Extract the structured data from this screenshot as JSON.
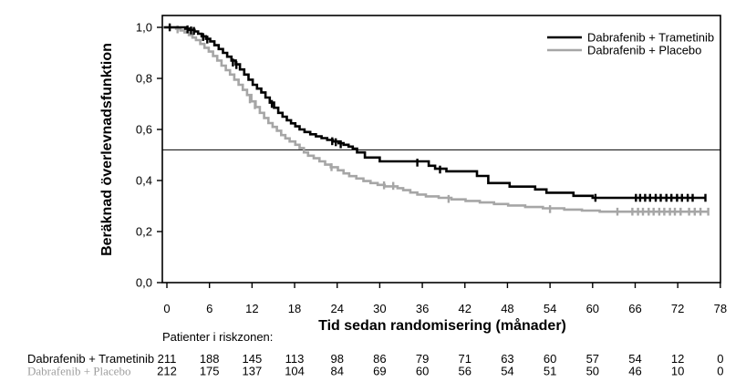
{
  "chart_data": {
    "type": "line",
    "variant": "kaplan_meier_step",
    "title": "",
    "xlabel": "Tid sedan randomisering (månader)",
    "ylabel": "Beräknad överlevnadsfunktion",
    "xlim": [
      0,
      78
    ],
    "ylim": [
      0.0,
      1.0
    ],
    "xticks": [
      0,
      6,
      12,
      18,
      24,
      30,
      36,
      42,
      48,
      54,
      60,
      66,
      72,
      78
    ],
    "yticks": [
      {
        "value": 0.0,
        "label": "0,0"
      },
      {
        "value": 0.2,
        "label": "0,2"
      },
      {
        "value": 0.4,
        "label": "0,4"
      },
      {
        "value": 0.6,
        "label": "0,6"
      },
      {
        "value": 0.8,
        "label": "0,8"
      },
      {
        "value": 1.0,
        "label": "1,0"
      }
    ],
    "grid": false,
    "legend_position": "top-right-inside",
    "reference_line": {
      "y": 0.52,
      "color": "#000000"
    },
    "axis_color": "#000000",
    "series": [
      {
        "name": "Dabrafenib + Trametinib",
        "color": "#000000",
        "steps": [
          [
            0,
            1.0
          ],
          [
            2.6,
            0.995
          ],
          [
            3.1,
            0.99
          ],
          [
            3.9,
            0.984
          ],
          [
            4.4,
            0.975
          ],
          [
            4.9,
            0.965
          ],
          [
            5.5,
            0.955
          ],
          [
            6.1,
            0.945
          ],
          [
            6.7,
            0.93
          ],
          [
            7.3,
            0.915
          ],
          [
            7.9,
            0.9
          ],
          [
            8.5,
            0.885
          ],
          [
            9.1,
            0.87
          ],
          [
            9.7,
            0.855
          ],
          [
            10.3,
            0.835
          ],
          [
            10.9,
            0.815
          ],
          [
            11.5,
            0.795
          ],
          [
            12.1,
            0.775
          ],
          [
            12.7,
            0.76
          ],
          [
            13.3,
            0.745
          ],
          [
            13.9,
            0.725
          ],
          [
            14.5,
            0.705
          ],
          [
            15.1,
            0.685
          ],
          [
            15.7,
            0.665
          ],
          [
            16.3,
            0.65
          ],
          [
            16.9,
            0.636
          ],
          [
            17.5,
            0.624
          ],
          [
            18.1,
            0.612
          ],
          [
            18.7,
            0.6
          ],
          [
            19.4,
            0.59
          ],
          [
            20.2,
            0.581
          ],
          [
            21.0,
            0.573
          ],
          [
            21.8,
            0.566
          ],
          [
            22.6,
            0.559
          ],
          [
            23.4,
            0.553
          ],
          [
            24.2,
            0.546
          ],
          [
            24.9,
            0.54
          ],
          [
            25.6,
            0.533
          ],
          [
            26.2,
            0.525
          ],
          [
            26.8,
            0.51
          ],
          [
            27.9,
            0.49
          ],
          [
            30.0,
            0.475
          ],
          [
            36.9,
            0.458
          ],
          [
            37.8,
            0.446
          ],
          [
            39.4,
            0.436
          ],
          [
            43.7,
            0.418
          ],
          [
            45.3,
            0.39
          ],
          [
            48.3,
            0.376
          ],
          [
            51.9,
            0.365
          ],
          [
            53.5,
            0.352
          ],
          [
            57.3,
            0.34
          ],
          [
            60.0,
            0.332
          ],
          [
            75.9,
            0.332
          ]
        ],
        "censor_marks": [
          [
            0.4,
            1.0
          ],
          [
            2.9,
            0.992
          ],
          [
            3.4,
            0.988
          ],
          [
            3.8,
            0.986
          ],
          [
            5.1,
            0.962
          ],
          [
            5.7,
            0.952
          ],
          [
            9.3,
            0.862
          ],
          [
            9.8,
            0.852
          ],
          [
            14.8,
            0.7
          ],
          [
            23.3,
            0.554
          ],
          [
            23.8,
            0.55
          ],
          [
            24.5,
            0.542
          ],
          [
            35.3,
            0.47
          ],
          [
            38.5,
            0.443
          ],
          [
            60.4,
            0.332
          ],
          [
            66.1,
            0.332
          ],
          [
            66.7,
            0.332
          ],
          [
            67.4,
            0.332
          ],
          [
            68.1,
            0.332
          ],
          [
            68.9,
            0.332
          ],
          [
            69.6,
            0.332
          ],
          [
            70.4,
            0.332
          ],
          [
            71.1,
            0.332
          ],
          [
            71.9,
            0.332
          ],
          [
            72.6,
            0.332
          ],
          [
            73.4,
            0.332
          ],
          [
            74.1,
            0.332
          ],
          [
            75.9,
            0.332
          ]
        ]
      },
      {
        "name": "Dabrafenib + Placebo",
        "color": "#a6a6a6",
        "steps": [
          [
            0,
            1.0
          ],
          [
            1.3,
            0.995
          ],
          [
            1.9,
            0.988
          ],
          [
            2.5,
            0.98
          ],
          [
            3.1,
            0.97
          ],
          [
            3.6,
            0.96
          ],
          [
            4.1,
            0.95
          ],
          [
            4.7,
            0.935
          ],
          [
            5.3,
            0.92
          ],
          [
            5.9,
            0.905
          ],
          [
            6.5,
            0.888
          ],
          [
            7.1,
            0.87
          ],
          [
            7.7,
            0.85
          ],
          [
            8.3,
            0.832
          ],
          [
            8.9,
            0.815
          ],
          [
            9.5,
            0.795
          ],
          [
            10.1,
            0.775
          ],
          [
            10.7,
            0.755
          ],
          [
            11.3,
            0.735
          ],
          [
            11.9,
            0.71
          ],
          [
            12.5,
            0.688
          ],
          [
            13.1,
            0.665
          ],
          [
            13.7,
            0.645
          ],
          [
            14.3,
            0.625
          ],
          [
            14.9,
            0.61
          ],
          [
            15.5,
            0.595
          ],
          [
            16.1,
            0.578
          ],
          [
            16.7,
            0.565
          ],
          [
            17.3,
            0.553
          ],
          [
            18.1,
            0.54
          ],
          [
            18.7,
            0.527
          ],
          [
            19.3,
            0.51
          ],
          [
            19.9,
            0.497
          ],
          [
            20.7,
            0.487
          ],
          [
            21.5,
            0.475
          ],
          [
            22.3,
            0.462
          ],
          [
            23.1,
            0.452
          ],
          [
            24.1,
            0.44
          ],
          [
            24.9,
            0.428
          ],
          [
            25.7,
            0.417
          ],
          [
            26.7,
            0.408
          ],
          [
            27.7,
            0.398
          ],
          [
            28.7,
            0.39
          ],
          [
            29.7,
            0.383
          ],
          [
            30.7,
            0.377
          ],
          [
            32.5,
            0.37
          ],
          [
            33.3,
            0.362
          ],
          [
            34.3,
            0.353
          ],
          [
            35.3,
            0.345
          ],
          [
            36.5,
            0.338
          ],
          [
            38.3,
            0.332
          ],
          [
            40.1,
            0.326
          ],
          [
            42.1,
            0.32
          ],
          [
            44.1,
            0.314
          ],
          [
            46.1,
            0.308
          ],
          [
            48.1,
            0.302
          ],
          [
            50.5,
            0.296
          ],
          [
            53.0,
            0.291
          ],
          [
            56.0,
            0.286
          ],
          [
            58.5,
            0.282
          ],
          [
            61.0,
            0.278
          ],
          [
            76.3,
            0.278
          ]
        ],
        "censor_marks": [
          [
            1.5,
            0.992
          ],
          [
            11.7,
            0.718
          ],
          [
            12.4,
            0.695
          ],
          [
            23.2,
            0.452
          ],
          [
            30.6,
            0.381
          ],
          [
            31.9,
            0.379
          ],
          [
            39.7,
            0.328
          ],
          [
            54.0,
            0.288
          ],
          [
            63.5,
            0.278
          ],
          [
            65.6,
            0.278
          ],
          [
            66.4,
            0.278
          ],
          [
            67.1,
            0.278
          ],
          [
            67.9,
            0.278
          ],
          [
            68.6,
            0.278
          ],
          [
            69.4,
            0.278
          ],
          [
            70.1,
            0.278
          ],
          [
            70.9,
            0.278
          ],
          [
            71.6,
            0.278
          ],
          [
            72.4,
            0.278
          ],
          [
            73.6,
            0.278
          ],
          [
            74.4,
            0.278
          ],
          [
            75.2,
            0.278
          ],
          [
            76.3,
            0.278
          ]
        ]
      }
    ]
  },
  "risk_table": {
    "header": "Patienter i riskzonen:",
    "time_points": [
      0,
      6,
      12,
      18,
      24,
      30,
      36,
      42,
      48,
      54,
      60,
      66,
      72,
      78
    ],
    "rows": [
      {
        "label": "Dabrafenib + Trametinib",
        "color": "#000000",
        "values": [
          211,
          188,
          145,
          113,
          98,
          86,
          79,
          71,
          63,
          60,
          57,
          54,
          12,
          0
        ]
      },
      {
        "label": "Dabrafenib + Placebo",
        "color": "#b0b0b0",
        "values": [
          212,
          175,
          137,
          104,
          84,
          69,
          60,
          56,
          54,
          51,
          50,
          46,
          10,
          0
        ]
      }
    ]
  }
}
